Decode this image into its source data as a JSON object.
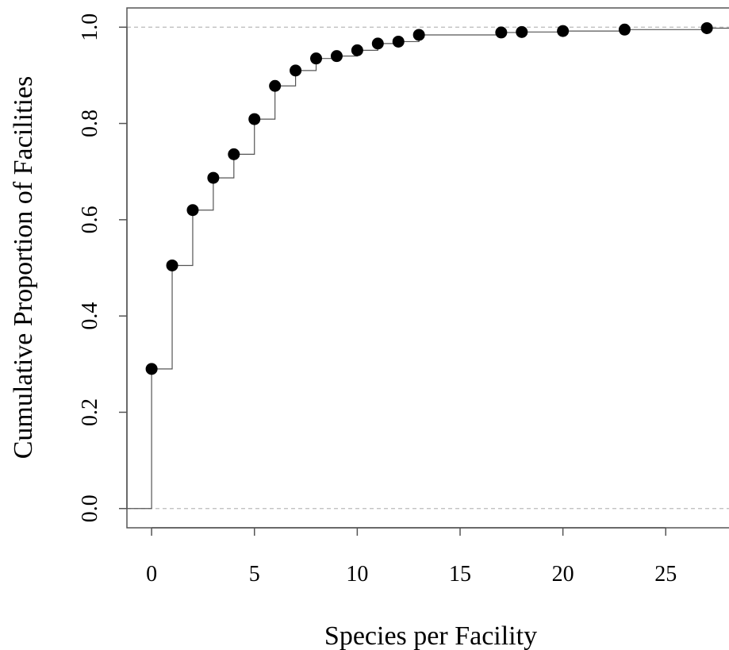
{
  "chart_data": {
    "type": "line",
    "subtype": "ecdf-step",
    "title": "",
    "xlabel": "Species per Facility",
    "ylabel": "Cumulative Proportion of Facilities",
    "xlim": [
      -1.2,
      28.5
    ],
    "ylim": [
      -0.04,
      1.04
    ],
    "x_ticks": [
      "0",
      "5",
      "10",
      "15",
      "20",
      "25"
    ],
    "y_ticks": [
      "0.0",
      "0.2",
      "0.4",
      "0.6",
      "0.8",
      "1.0"
    ],
    "reference_lines_y": [
      0,
      1
    ],
    "grid": false,
    "legend": "none",
    "point_color": "#000000",
    "line_color": "#555555",
    "reference_line_color": "#bbbbbb",
    "points": [
      {
        "x": 0,
        "y": 0.29
      },
      {
        "x": 1,
        "y": 0.505
      },
      {
        "x": 2,
        "y": 0.62
      },
      {
        "x": 3,
        "y": 0.687
      },
      {
        "x": 4,
        "y": 0.736
      },
      {
        "x": 5,
        "y": 0.809
      },
      {
        "x": 6,
        "y": 0.878
      },
      {
        "x": 7,
        "y": 0.91
      },
      {
        "x": 8,
        "y": 0.935
      },
      {
        "x": 9,
        "y": 0.94
      },
      {
        "x": 10,
        "y": 0.952
      },
      {
        "x": 11,
        "y": 0.966
      },
      {
        "x": 12,
        "y": 0.97
      },
      {
        "x": 13,
        "y": 0.984
      },
      {
        "x": 17,
        "y": 0.989
      },
      {
        "x": 18,
        "y": 0.99
      },
      {
        "x": 20,
        "y": 0.992
      },
      {
        "x": 23,
        "y": 0.995
      },
      {
        "x": 27,
        "y": 0.998
      }
    ]
  }
}
